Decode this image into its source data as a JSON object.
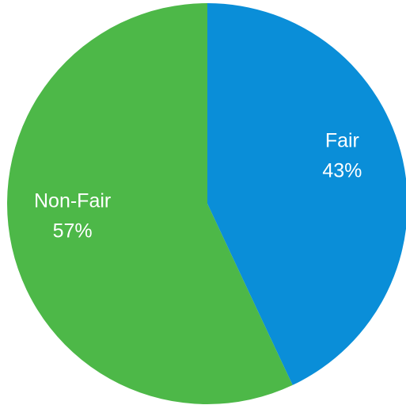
{
  "chart_data": {
    "type": "pie",
    "categories": [
      "Fair",
      "Non-Fair"
    ],
    "values": [
      43,
      57
    ],
    "value_labels": [
      "43%",
      "57%"
    ],
    "colors": [
      "#0a8ed8",
      "#4db848"
    ]
  }
}
